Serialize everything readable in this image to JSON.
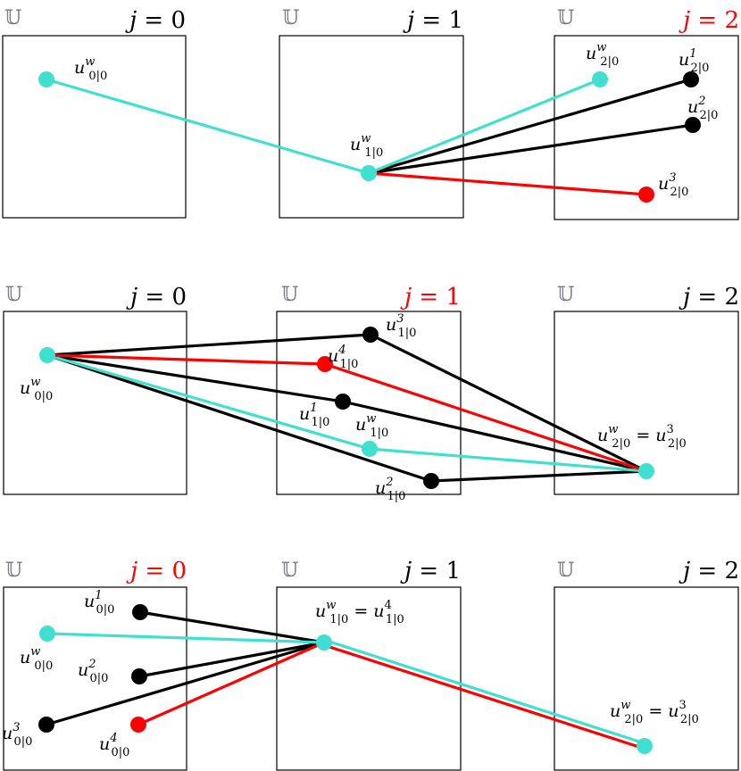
{
  "colors": {
    "nominal": "#40e0d0",
    "sample": "#000000",
    "selected": "#ff0000",
    "axis": "#000000"
  },
  "set_symbol": "𝕌",
  "rows": [
    {
      "active_j": 2,
      "j_labels": [
        "j = 0",
        "j = 1",
        "j = 2"
      ],
      "segments": [
        {
          "from": "p00",
          "to": "p10",
          "color": "nominal"
        },
        {
          "from": "p10",
          "to": "p20w",
          "color": "nominal"
        },
        {
          "from": "p10",
          "to": "p21",
          "color": "sample"
        },
        {
          "from": "p10",
          "to": "p22",
          "color": "sample"
        },
        {
          "from": "p10",
          "to": "p23",
          "color": "selected"
        }
      ],
      "points": [
        {
          "id": "p00",
          "color": "nominal",
          "label": {
            "base": "u",
            "sup": "w",
            "sub": "0|0"
          }
        },
        {
          "id": "p10",
          "color": "nominal",
          "label": {
            "base": "u",
            "sup": "w",
            "sub": "1|0"
          }
        },
        {
          "id": "p20w",
          "color": "nominal",
          "label": {
            "base": "u",
            "sup": "w",
            "sub": "2|0"
          }
        },
        {
          "id": "p21",
          "color": "sample",
          "label": {
            "base": "u",
            "sup": "1",
            "sub": "2|0"
          }
        },
        {
          "id": "p22",
          "color": "sample",
          "label": {
            "base": "u",
            "sup": "2",
            "sub": "2|0"
          }
        },
        {
          "id": "p23",
          "color": "selected",
          "label": {
            "base": "u",
            "sup": "3",
            "sub": "2|0"
          }
        }
      ]
    },
    {
      "active_j": 1,
      "j_labels": [
        "j = 0",
        "j = 1",
        "j = 2"
      ],
      "segments": [
        {
          "from": "q00",
          "to": "q13",
          "color": "sample"
        },
        {
          "from": "q13",
          "to": "q20",
          "color": "sample"
        },
        {
          "from": "q00",
          "to": "q11",
          "color": "sample"
        },
        {
          "from": "q11",
          "to": "q20",
          "color": "sample"
        },
        {
          "from": "q00",
          "to": "q12",
          "color": "sample"
        },
        {
          "from": "q12",
          "to": "q20",
          "color": "sample"
        },
        {
          "from": "q00",
          "to": "q1w",
          "color": "nominal"
        },
        {
          "from": "q1w",
          "to": "q20",
          "color": "nominal"
        },
        {
          "from": "q00",
          "to": "q14",
          "color": "selected"
        },
        {
          "from": "q14",
          "to": "q20",
          "color": "selected"
        }
      ],
      "points": [
        {
          "id": "q00",
          "color": "nominal",
          "label": {
            "base": "u",
            "sup": "w",
            "sub": "0|0"
          }
        },
        {
          "id": "q13",
          "color": "sample",
          "label": {
            "base": "u",
            "sup": "3",
            "sub": "1|0"
          }
        },
        {
          "id": "q14",
          "color": "selected",
          "label": {
            "base": "u",
            "sup": "4",
            "sub": "1|0"
          }
        },
        {
          "id": "q11",
          "color": "sample",
          "label": {
            "base": "u",
            "sup": "1",
            "sub": "1|0"
          }
        },
        {
          "id": "q1w",
          "color": "nominal",
          "label": {
            "base": "u",
            "sup": "w",
            "sub": "1|0"
          }
        },
        {
          "id": "q12",
          "color": "sample",
          "label": {
            "base": "u",
            "sup": "2",
            "sub": "1|0"
          }
        },
        {
          "id": "q20",
          "color": "nominal",
          "label": {
            "base": "u",
            "sup": "w",
            "sub": "2|0",
            "eq": "= u",
            "eq_sup": "3",
            "eq_sub": "2|0"
          }
        }
      ]
    },
    {
      "active_j": 0,
      "j_labels": [
        "j = 0",
        "j = 1",
        "j = 2"
      ],
      "segments": [
        {
          "from": "r01",
          "to": "r10",
          "color": "sample"
        },
        {
          "from": "r0w",
          "to": "r10",
          "color": "nominal"
        },
        {
          "from": "r02",
          "to": "r10",
          "color": "sample"
        },
        {
          "from": "r03",
          "to": "r10",
          "color": "sample"
        },
        {
          "from": "r04",
          "to": "r10",
          "color": "selected"
        },
        {
          "from": "r10",
          "to": "r20",
          "color": "selected"
        },
        {
          "from": "r10",
          "to": "r20",
          "color": "nominal"
        }
      ],
      "points": [
        {
          "id": "r01",
          "color": "sample",
          "label": {
            "base": "u",
            "sup": "1",
            "sub": "0|0"
          }
        },
        {
          "id": "r0w",
          "color": "nominal",
          "label": {
            "base": "u",
            "sup": "w",
            "sub": "0|0"
          }
        },
        {
          "id": "r02",
          "color": "sample",
          "label": {
            "base": "u",
            "sup": "2",
            "sub": "0|0"
          }
        },
        {
          "id": "r03",
          "color": "sample",
          "label": {
            "base": "u",
            "sup": "3",
            "sub": "0|0"
          }
        },
        {
          "id": "r04",
          "color": "selected",
          "label": {
            "base": "u",
            "sup": "4",
            "sub": "0|0"
          }
        },
        {
          "id": "r10",
          "color": "nominal",
          "label": {
            "base": "u",
            "sup": "w",
            "sub": "1|0",
            "eq": "= u",
            "eq_sup": "4",
            "eq_sub": "1|0"
          }
        },
        {
          "id": "r20",
          "color": "nominal",
          "label": {
            "base": "u",
            "sup": "w",
            "sub": "2|0",
            "eq": "= u",
            "eq_sup": "3",
            "eq_sub": "2|0"
          }
        }
      ]
    }
  ]
}
